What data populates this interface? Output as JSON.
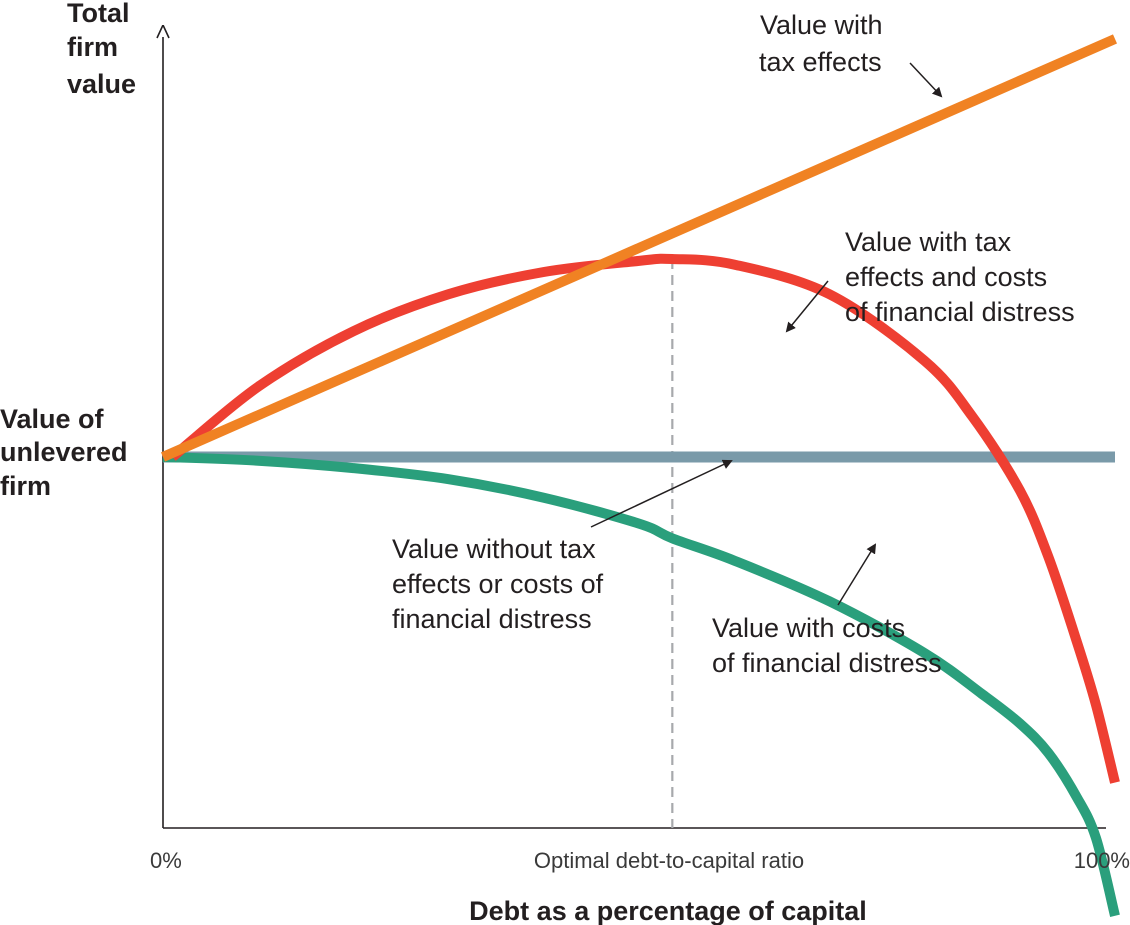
{
  "chart_data": {
    "type": "line",
    "title": "",
    "xlabel": "Debt as a percentage of capital",
    "ylabel_lines": [
      "Total",
      "firm",
      "value"
    ],
    "y_reference_label_lines": [
      "Value of",
      "unlevered",
      "firm"
    ],
    "x_tick_labels": [
      "0%",
      "Optimal debt-to-capital ratio",
      "100%"
    ],
    "xlim": [
      0,
      100
    ],
    "ylim": [
      -100,
      110
    ],
    "optimal_debt_pct": 53.5,
    "grid": false,
    "legend": "none",
    "series": [
      {
        "key": "tax",
        "label_lines": [
          "Value with",
          "tax effects"
        ],
        "color": "#f08223",
        "x": [
          0,
          100
        ],
        "y": [
          0,
          113
        ]
      },
      {
        "key": "tax_distress",
        "label_lines": [
          "Value with tax",
          "effects and costs",
          "of financial distress"
        ],
        "color": "#ee3f32",
        "x": [
          1,
          10,
          20,
          30,
          40,
          50,
          53.5,
          60,
          70,
          80,
          85,
          90,
          93,
          96,
          98,
          100
        ],
        "y": [
          0,
          19,
          34,
          44,
          50,
          53,
          53.5,
          52,
          44,
          26,
          11,
          -9,
          -27,
          -50,
          -67,
          -88
        ]
      },
      {
        "key": "none",
        "label_lines": [
          "Value without tax",
          "effects or costs of",
          "financial distress"
        ],
        "color": "#7a9aa9",
        "x": [
          0,
          100
        ],
        "y": [
          0,
          0
        ]
      },
      {
        "key": "distress",
        "label_lines": [
          "Value with costs",
          "of financial distress"
        ],
        "color": "#2a9f7c",
        "x": [
          0,
          10,
          20,
          30,
          40,
          50,
          53.5,
          60,
          70,
          80,
          86,
          90,
          93,
          96,
          98,
          100
        ],
        "y": [
          0,
          -1,
          -3,
          -6,
          -11,
          -18,
          -22,
          -28,
          -39,
          -53,
          -64,
          -72,
          -80,
          -92,
          -103,
          -124
        ]
      }
    ]
  }
}
